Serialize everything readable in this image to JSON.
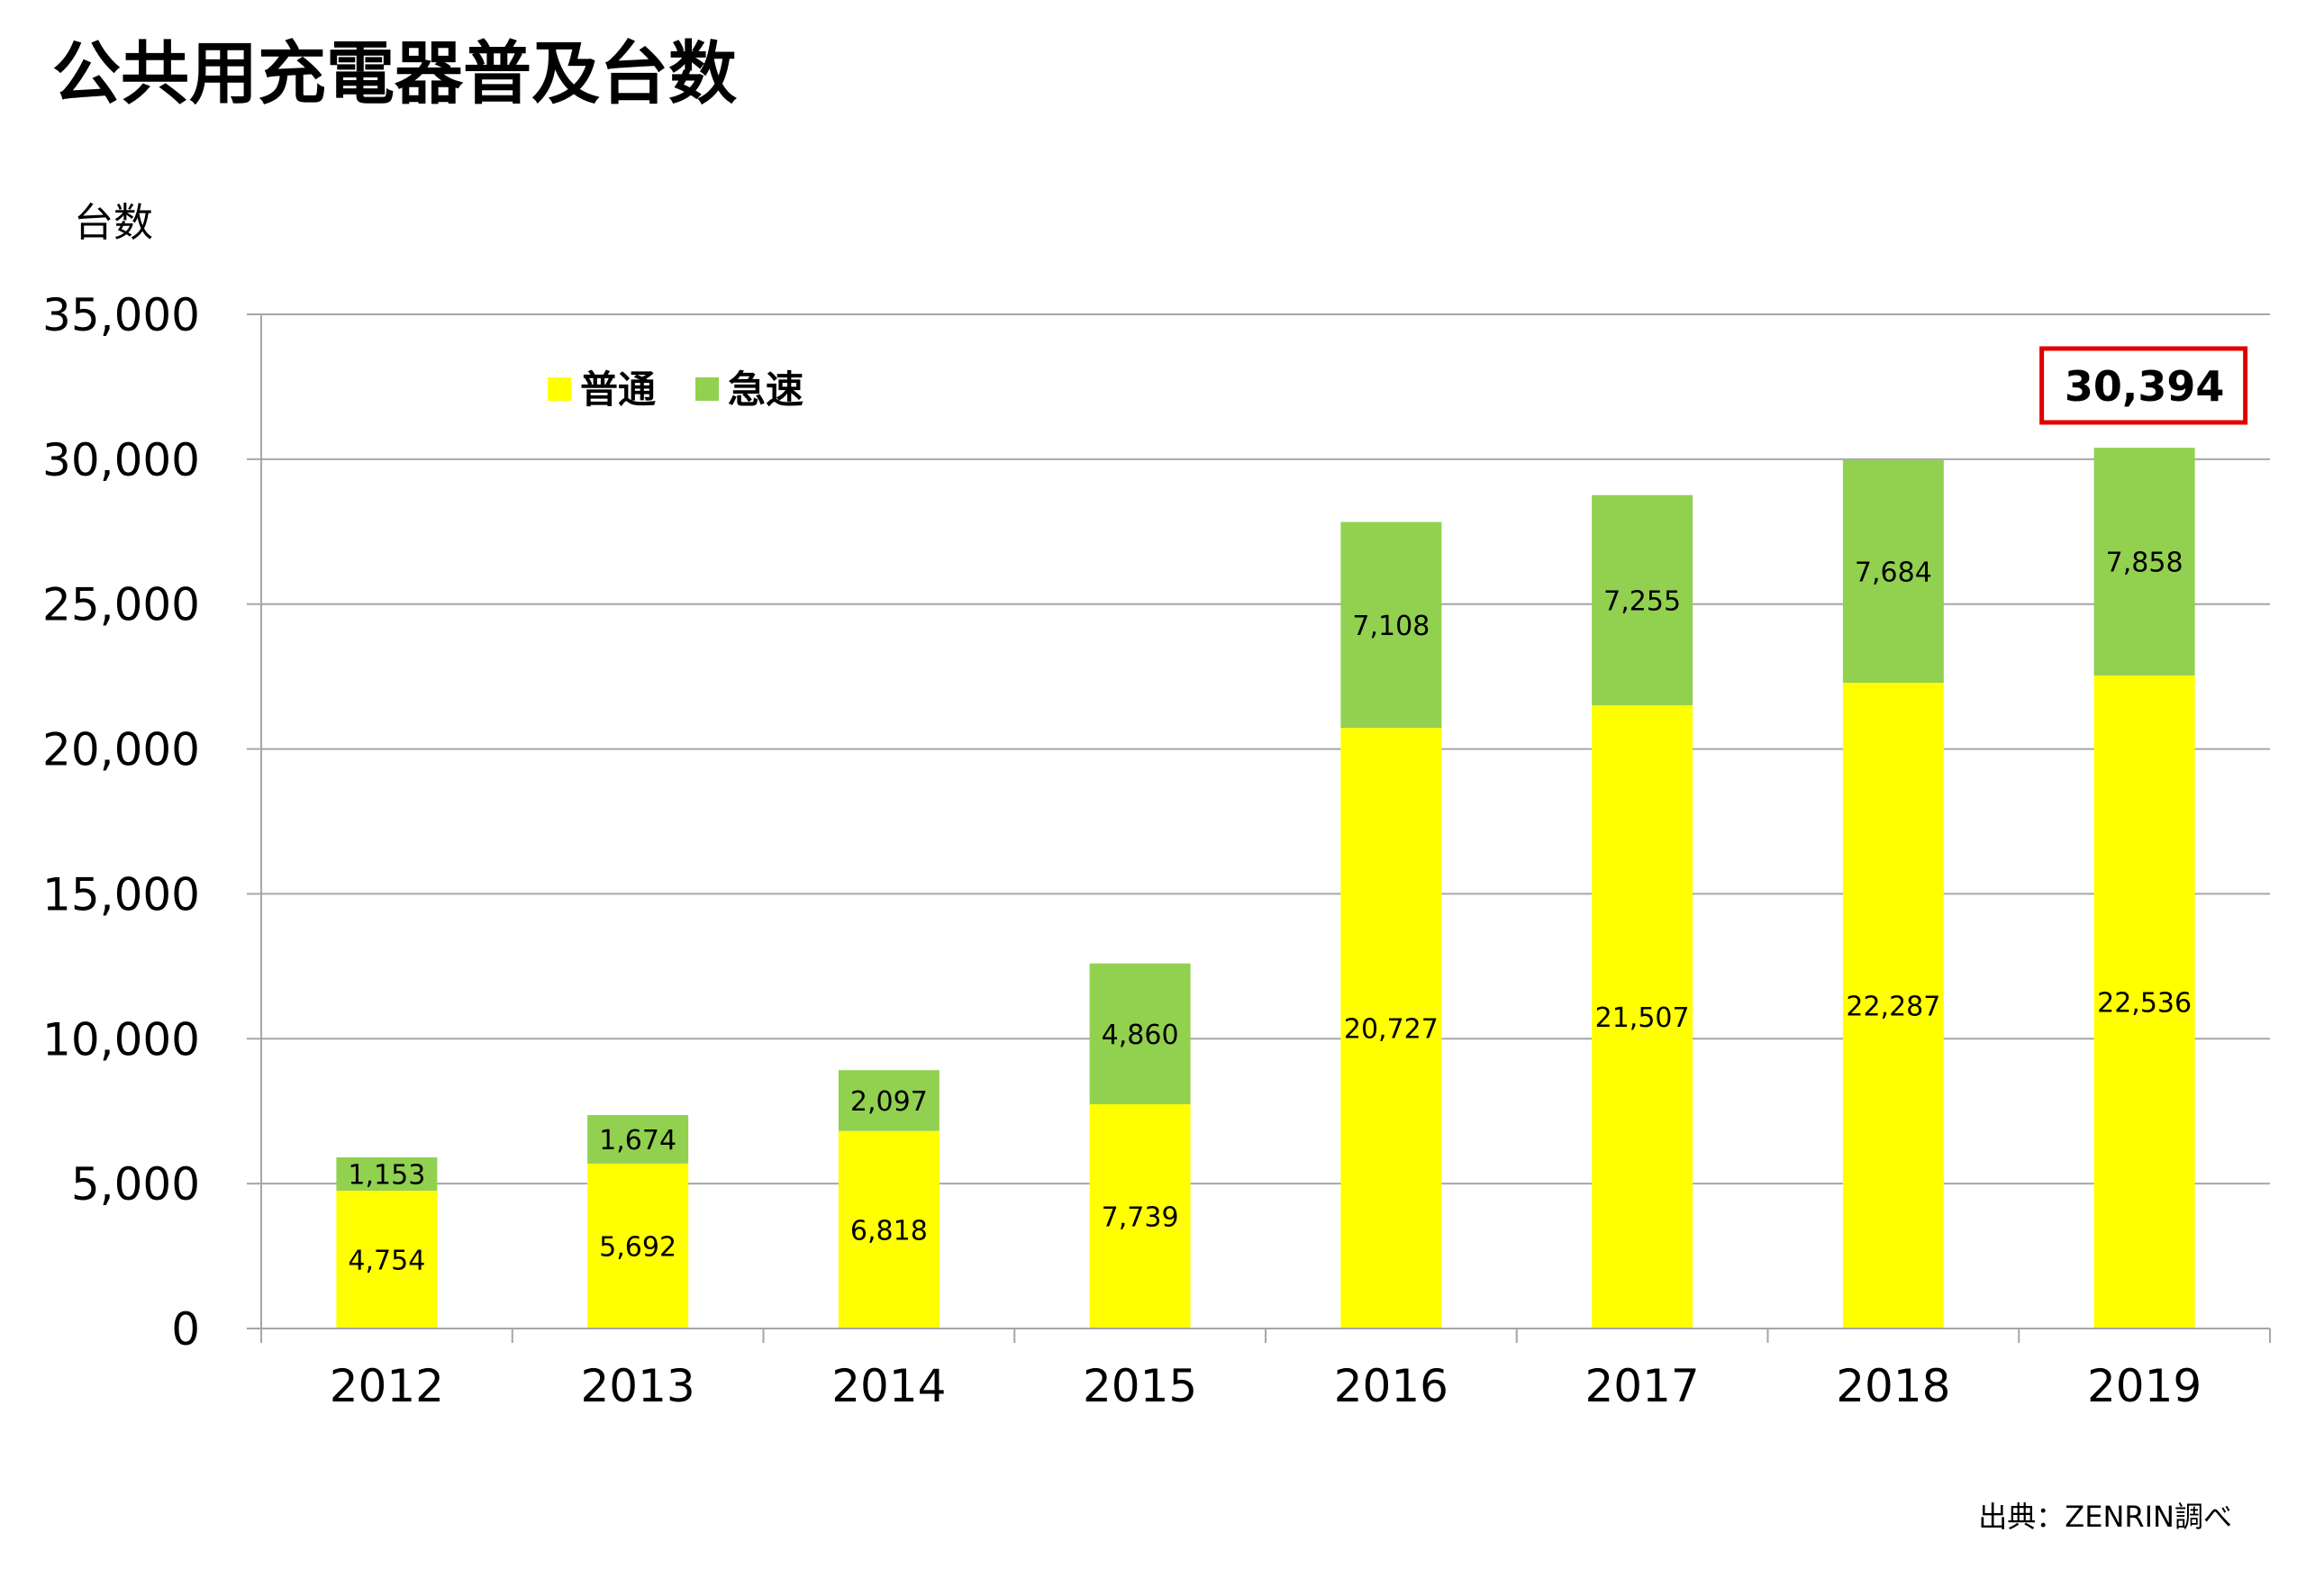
{
  "chart_data": {
    "type": "bar",
    "stacked": true,
    "title": "公共用充電器普及台数",
    "ylabel": "台数",
    "xlabel": "",
    "categories": [
      "2012",
      "2013",
      "2014",
      "2015",
      "2016",
      "2017",
      "2018",
      "2019"
    ],
    "ylim": [
      0,
      35000
    ],
    "yticks": [
      0,
      5000,
      10000,
      15000,
      20000,
      25000,
      30000,
      35000
    ],
    "ytick_labels": [
      "0",
      "5,000",
      "10,000",
      "15,000",
      "20,000",
      "25,000",
      "30,000",
      "35,000"
    ],
    "grid": true,
    "legend_position": "top-left",
    "series": [
      {
        "name": "普通",
        "color": "#ffff00",
        "values": [
          4754,
          5692,
          6818,
          7739,
          20727,
          21507,
          22287,
          22536
        ],
        "labels": [
          "4,754",
          "5,692",
          "6,818",
          "7,739",
          "20,727",
          "21,507",
          "22,287",
          "22,536"
        ]
      },
      {
        "name": "急速",
        "color": "#92d050",
        "values": [
          1153,
          1674,
          2097,
          4860,
          7108,
          7255,
          7684,
          7858
        ],
        "labels": [
          "1,153",
          "1,674",
          "2,097",
          "4,860",
          "7,108",
          "7,255",
          "7,684",
          "7,858"
        ]
      }
    ],
    "annotation": {
      "text": "30,394",
      "category": "2019",
      "border_color": "#e00000"
    },
    "source": "出典：ZENRIN調べ"
  }
}
